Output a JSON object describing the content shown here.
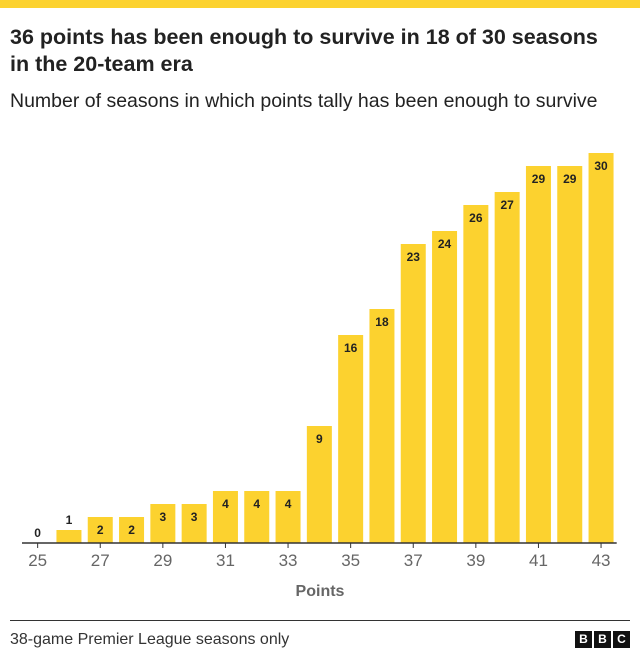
{
  "colors": {
    "bar": "#fcd22f",
    "accent": "#fcd22f",
    "axis": "#333333",
    "text": "#222222",
    "tick_text": "#666666"
  },
  "header": {
    "title": "36 points has been enough to survive in 18 of 30 seasons in the 20-team era",
    "subtitle": "Number of seasons in which points tally has been enough to survive"
  },
  "footer": {
    "source": "38-game Premier League seasons only",
    "logo_letters": [
      "B",
      "B",
      "C"
    ]
  },
  "chart_data": {
    "type": "bar",
    "categories": [
      25,
      26,
      27,
      28,
      29,
      30,
      31,
      32,
      33,
      34,
      35,
      36,
      37,
      38,
      39,
      40,
      41,
      42,
      43
    ],
    "values": [
      0,
      1,
      2,
      2,
      3,
      3,
      4,
      4,
      4,
      9,
      16,
      18,
      23,
      24,
      26,
      27,
      29,
      29,
      30
    ],
    "tick_labels": [
      "25",
      "27",
      "29",
      "31",
      "33",
      "35",
      "37",
      "39",
      "41",
      "43"
    ],
    "xlabel": "Points",
    "ylabel": "",
    "ylim": [
      0,
      30
    ],
    "grid": false,
    "data_labels": true
  }
}
